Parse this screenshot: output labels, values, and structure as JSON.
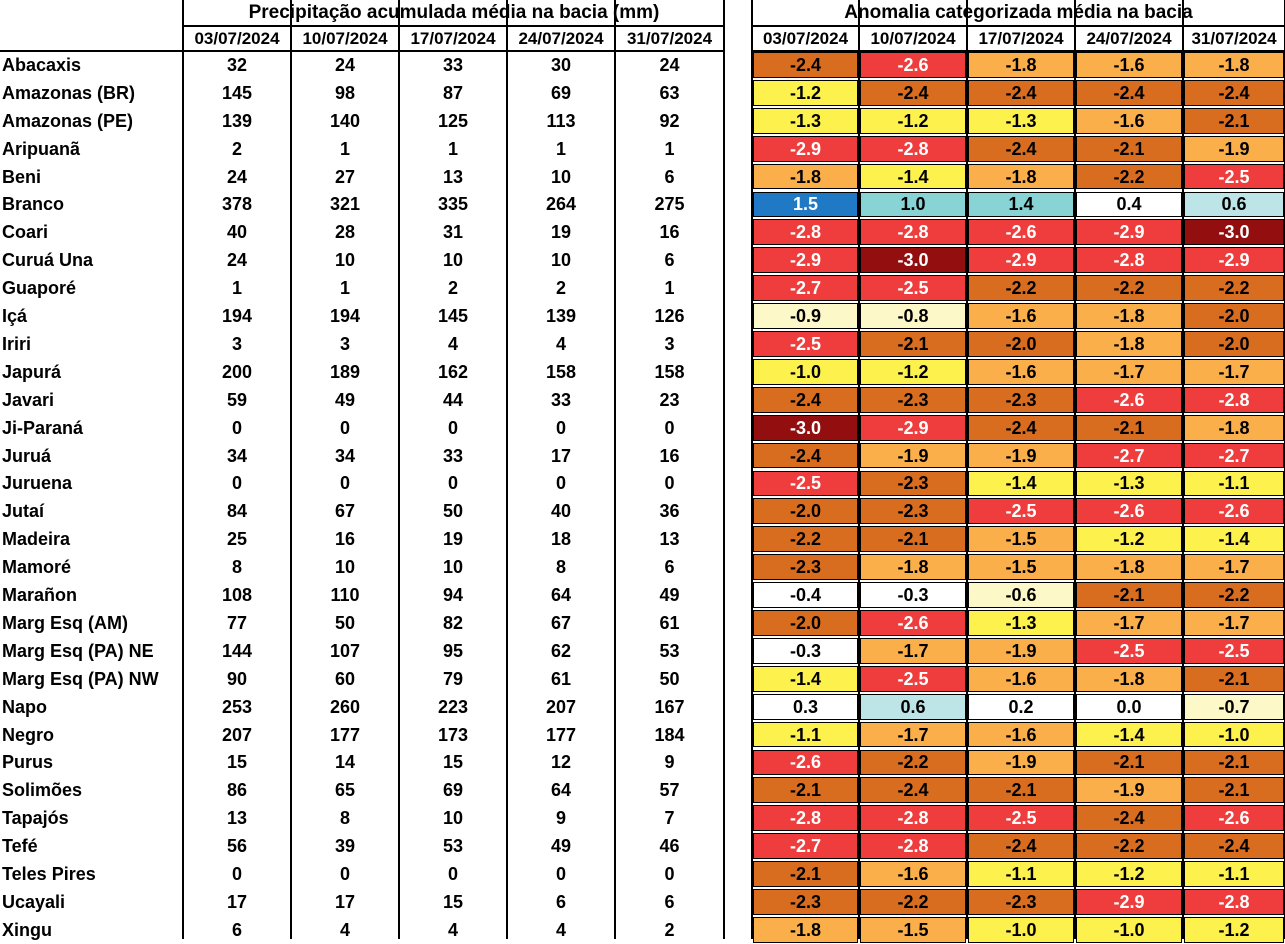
{
  "left_title": "Precipitação acumulada média na bacia (mm)",
  "right_title": "Anomalia categorizada média na bacia",
  "dates": [
    "03/07/2024",
    "10/07/2024",
    "17/07/2024",
    "24/07/2024",
    "31/07/2024"
  ],
  "color_categories": {
    "-3.0": "#930f0f",
    "-2.9..-2.5": "#ef3d3d",
    "-2.4..-2.0": "#d86d1f",
    "-1.9..-1.5": "#fbaf4b",
    "-1.4..-1.0": "#fdf14d",
    "-0.9..-0.5": "#fdf8c7",
    "-0.4..0.4": "#ffffff",
    "0.5..0.9": "#bde5e7",
    "1.0..1.4": "#88d3d4",
    "1.5..": "#1f79c4"
  },
  "chart_data": {
    "type": "table",
    "tables": [
      {
        "title": "Precipitação acumulada média na bacia (mm)",
        "columns": [
          "03/07/2024",
          "10/07/2024",
          "17/07/2024",
          "24/07/2024",
          "31/07/2024"
        ]
      },
      {
        "title": "Anomalia categorizada média na bacia",
        "columns": [
          "03/07/2024",
          "10/07/2024",
          "17/07/2024",
          "24/07/2024",
          "31/07/2024"
        ]
      }
    ],
    "rows": [
      {
        "name": "Abacaxis",
        "precip": [
          "32",
          "24",
          "33",
          "30",
          "24"
        ],
        "anomaly": [
          "-2.4",
          "-2.6",
          "-1.8",
          "-1.6",
          "-1.8"
        ]
      },
      {
        "name": "Amazonas (BR)",
        "precip": [
          "145",
          "98",
          "87",
          "69",
          "63"
        ],
        "anomaly": [
          "-1.2",
          "-2.4",
          "-2.4",
          "-2.4",
          "-2.4"
        ]
      },
      {
        "name": "Amazonas (PE)",
        "precip": [
          "139",
          "140",
          "125",
          "113",
          "92"
        ],
        "anomaly": [
          "-1.3",
          "-1.2",
          "-1.3",
          "-1.6",
          "-2.1"
        ]
      },
      {
        "name": "Aripuanã",
        "precip": [
          "2",
          "1",
          "1",
          "1",
          "1"
        ],
        "anomaly": [
          "-2.9",
          "-2.8",
          "-2.4",
          "-2.1",
          "-1.9"
        ]
      },
      {
        "name": "Beni",
        "precip": [
          "24",
          "27",
          "13",
          "10",
          "6"
        ],
        "anomaly": [
          "-1.8",
          "-1.4",
          "-1.8",
          "-2.2",
          "-2.5"
        ]
      },
      {
        "name": "Branco",
        "precip": [
          "378",
          "321",
          "335",
          "264",
          "275"
        ],
        "anomaly": [
          "1.5",
          "1.0",
          "1.4",
          "0.4",
          "0.6"
        ]
      },
      {
        "name": "Coari",
        "precip": [
          "40",
          "28",
          "31",
          "19",
          "16"
        ],
        "anomaly": [
          "-2.8",
          "-2.8",
          "-2.6",
          "-2.9",
          "-3.0"
        ]
      },
      {
        "name": "Curuá Una",
        "precip": [
          "24",
          "10",
          "10",
          "10",
          "6"
        ],
        "anomaly": [
          "-2.9",
          "-3.0",
          "-2.9",
          "-2.8",
          "-2.9"
        ]
      },
      {
        "name": "Guaporé",
        "precip": [
          "1",
          "1",
          "2",
          "2",
          "1"
        ],
        "anomaly": [
          "-2.7",
          "-2.5",
          "-2.2",
          "-2.2",
          "-2.2"
        ]
      },
      {
        "name": "Içá",
        "precip": [
          "194",
          "194",
          "145",
          "139",
          "126"
        ],
        "anomaly": [
          "-0.9",
          "-0.8",
          "-1.6",
          "-1.8",
          "-2.0"
        ]
      },
      {
        "name": "Iriri",
        "precip": [
          "3",
          "3",
          "4",
          "4",
          "3"
        ],
        "anomaly": [
          "-2.5",
          "-2.1",
          "-2.0",
          "-1.8",
          "-2.0"
        ]
      },
      {
        "name": "Japurá",
        "precip": [
          "200",
          "189",
          "162",
          "158",
          "158"
        ],
        "anomaly": [
          "-1.0",
          "-1.2",
          "-1.6",
          "-1.7",
          "-1.7"
        ]
      },
      {
        "name": "Javari",
        "precip": [
          "59",
          "49",
          "44",
          "33",
          "23"
        ],
        "anomaly": [
          "-2.4",
          "-2.3",
          "-2.3",
          "-2.6",
          "-2.8"
        ]
      },
      {
        "name": "Ji-Paraná",
        "precip": [
          "0",
          "0",
          "0",
          "0",
          "0"
        ],
        "anomaly": [
          "-3.0",
          "-2.9",
          "-2.4",
          "-2.1",
          "-1.8"
        ]
      },
      {
        "name": "Juruá",
        "precip": [
          "34",
          "34",
          "33",
          "17",
          "16"
        ],
        "anomaly": [
          "-2.4",
          "-1.9",
          "-1.9",
          "-2.7",
          "-2.7"
        ]
      },
      {
        "name": "Juruena",
        "precip": [
          "0",
          "0",
          "0",
          "0",
          "0"
        ],
        "anomaly": [
          "-2.5",
          "-2.3",
          "-1.4",
          "-1.3",
          "-1.1"
        ]
      },
      {
        "name": "Jutaí",
        "precip": [
          "84",
          "67",
          "50",
          "40",
          "36"
        ],
        "anomaly": [
          "-2.0",
          "-2.3",
          "-2.5",
          "-2.6",
          "-2.6"
        ]
      },
      {
        "name": "Madeira",
        "precip": [
          "25",
          "16",
          "19",
          "18",
          "13"
        ],
        "anomaly": [
          "-2.2",
          "-2.1",
          "-1.5",
          "-1.2",
          "-1.4"
        ]
      },
      {
        "name": "Mamoré",
        "precip": [
          "8",
          "10",
          "10",
          "8",
          "6"
        ],
        "anomaly": [
          "-2.3",
          "-1.8",
          "-1.5",
          "-1.8",
          "-1.7"
        ]
      },
      {
        "name": "Marañon",
        "precip": [
          "108",
          "110",
          "94",
          "64",
          "49"
        ],
        "anomaly": [
          "-0.4",
          "-0.3",
          "-0.6",
          "-2.1",
          "-2.2"
        ]
      },
      {
        "name": "Marg Esq (AM)",
        "precip": [
          "77",
          "50",
          "82",
          "67",
          "61"
        ],
        "anomaly": [
          "-2.0",
          "-2.6",
          "-1.3",
          "-1.7",
          "-1.7"
        ]
      },
      {
        "name": "Marg Esq (PA) NE",
        "precip": [
          "144",
          "107",
          "95",
          "62",
          "53"
        ],
        "anomaly": [
          "-0.3",
          "-1.7",
          "-1.9",
          "-2.5",
          "-2.5"
        ]
      },
      {
        "name": "Marg Esq (PA) NW",
        "precip": [
          "90",
          "60",
          "79",
          "61",
          "50"
        ],
        "anomaly": [
          "-1.4",
          "-2.5",
          "-1.6",
          "-1.8",
          "-2.1"
        ]
      },
      {
        "name": "Napo",
        "precip": [
          "253",
          "260",
          "223",
          "207",
          "167"
        ],
        "anomaly": [
          "0.3",
          "0.6",
          "0.2",
          "0.0",
          "-0.7"
        ]
      },
      {
        "name": "Negro",
        "precip": [
          "207",
          "177",
          "173",
          "177",
          "184"
        ],
        "anomaly": [
          "-1.1",
          "-1.7",
          "-1.6",
          "-1.4",
          "-1.0"
        ]
      },
      {
        "name": "Purus",
        "precip": [
          "15",
          "14",
          "15",
          "12",
          "9"
        ],
        "anomaly": [
          "-2.6",
          "-2.2",
          "-1.9",
          "-2.1",
          "-2.1"
        ]
      },
      {
        "name": "Solimões",
        "precip": [
          "86",
          "65",
          "69",
          "64",
          "57"
        ],
        "anomaly": [
          "-2.1",
          "-2.4",
          "-2.1",
          "-1.9",
          "-2.1"
        ]
      },
      {
        "name": "Tapajós",
        "precip": [
          "13",
          "8",
          "10",
          "9",
          "7"
        ],
        "anomaly": [
          "-2.8",
          "-2.8",
          "-2.5",
          "-2.4",
          "-2.6"
        ]
      },
      {
        "name": "Tefé",
        "precip": [
          "56",
          "39",
          "53",
          "49",
          "46"
        ],
        "anomaly": [
          "-2.7",
          "-2.8",
          "-2.4",
          "-2.2",
          "-2.4"
        ]
      },
      {
        "name": "Teles Pires",
        "precip": [
          "0",
          "0",
          "0",
          "0",
          "0"
        ],
        "anomaly": [
          "-2.1",
          "-1.6",
          "-1.1",
          "-1.2",
          "-1.1"
        ]
      },
      {
        "name": "Ucayali",
        "precip": [
          "17",
          "17",
          "15",
          "6",
          "6"
        ],
        "anomaly": [
          "-2.3",
          "-2.2",
          "-2.3",
          "-2.9",
          "-2.8"
        ]
      },
      {
        "name": "Xingu",
        "precip": [
          "6",
          "4",
          "4",
          "4",
          "2"
        ],
        "anomaly": [
          "-1.8",
          "-1.5",
          "-1.0",
          "-1.0",
          "-1.2"
        ]
      }
    ]
  }
}
